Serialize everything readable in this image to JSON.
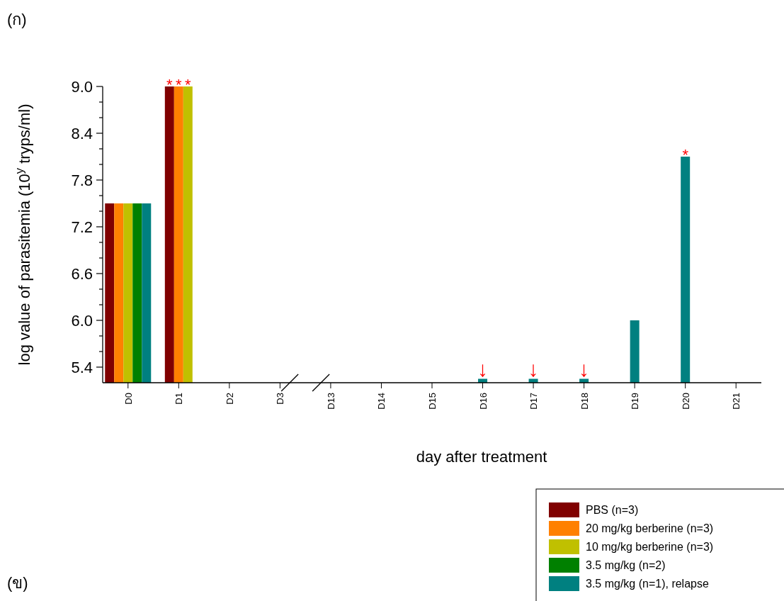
{
  "chart_data": {
    "type": "bar",
    "xlabel": "day after treatment",
    "ylabel": "log value of parasitemia (10$^{y}$ tryps/ml)",
    "categories": [
      "D0",
      "D1",
      "D2",
      "D3",
      "D13",
      "D14",
      "D15",
      "D16",
      "D17",
      "D18",
      "D19",
      "D20",
      "D21"
    ],
    "series": [
      {
        "name": "PBS (n=3)",
        "color": "#800000",
        "values": [
          7.5,
          9.0,
          null,
          null,
          null,
          null,
          null,
          null,
          null,
          null,
          null,
          null,
          null
        ]
      },
      {
        "name": "20 mg/kg berberine (n=3)",
        "color": "#ff8000",
        "values": [
          7.5,
          9.0,
          null,
          null,
          null,
          null,
          null,
          null,
          null,
          null,
          null,
          null,
          null
        ]
      },
      {
        "name": "10 mg/kg berberine (n=3)",
        "color": "#c0c000",
        "values": [
          7.5,
          9.0,
          null,
          null,
          null,
          null,
          null,
          null,
          null,
          null,
          null,
          null,
          null
        ]
      },
      {
        "name": "3.5 mg/kg (n=2)",
        "color": "#008000",
        "values": [
          7.5,
          null,
          null,
          null,
          null,
          null,
          null,
          null,
          null,
          null,
          null,
          null,
          null
        ]
      },
      {
        "name": "3.5 mg/kg (n=1), relapse",
        "color": "#008080",
        "values": [
          7.5,
          null,
          null,
          null,
          null,
          null,
          null,
          5.25,
          5.25,
          5.25,
          6.0,
          8.1,
          null
        ]
      }
    ],
    "ylim": [
      5.2,
      9.0
    ],
    "yticks": [
      5.4,
      {
        "value": 5.6,
        "label": null
      },
      {
        "value": 5.8,
        "label": null
      },
      {
        "value": 6,
        "label": "6.0"
      },
      {
        "value": 6.2,
        "label": null
      },
      {
        "value": 6.4,
        "label": null
      },
      6.6,
      {
        "value": 6.8,
        "label": null
      },
      {
        "value": 7.0,
        "label": null
      },
      7.2,
      {
        "value": 7.4,
        "label": null
      },
      {
        "value": 7.6,
        "label": null
      },
      7.8,
      {
        "value": 8.0,
        "label": null
      },
      {
        "value": 8.2,
        "label": null
      },
      8.4,
      {
        "value": 8.6,
        "label": null
      },
      {
        "value": 8.8,
        "label": null
      },
      {
        "value": 9,
        "label": "9.0"
      }
    ],
    "legend": "bottom right",
    "annotations": [
      "(ก)",
      "(ข)",
      {
        "text": "*",
        "x": "D1",
        "y": 9.0
      },
      {
        "text": "*",
        "x": "D1",
        "y": 9.0
      },
      {
        "text": "*",
        "x": "D1",
        "y": 9.0
      },
      {
        "text": "*",
        "x": "D20",
        "y": 8.1
      },
      {
        "text": "↓",
        "x": "D16",
        "y": 5.25
      },
      {
        "text": "↓",
        "x": "D17",
        "y": 5.25
      },
      {
        "text": "↓",
        "x": "D18",
        "y": 5.25
      }
    ]
  }
}
